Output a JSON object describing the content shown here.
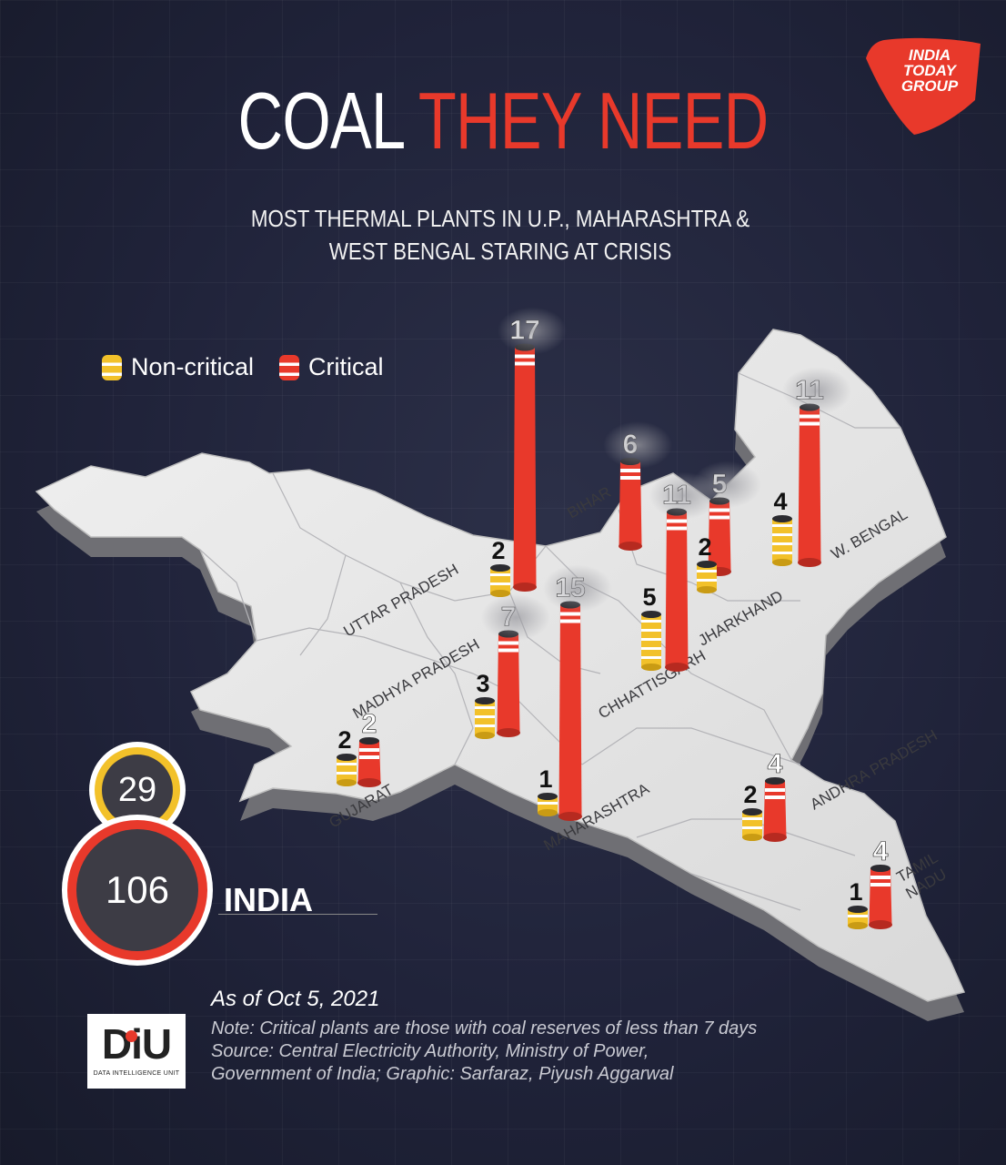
{
  "header": {
    "title_white": "COAL",
    "title_red": "THEY NEED",
    "subtitle_line1": "MOST THERMAL PLANTS IN U.P., MAHARASHTRA &",
    "subtitle_line2": "WEST BENGAL STARING AT CRISIS",
    "brand_lines": [
      "INDIA",
      "TODAY",
      "GROUP"
    ]
  },
  "legend": {
    "noncritical_label": "Non-critical",
    "critical_label": "Critical"
  },
  "colors": {
    "critical": "#e8392b",
    "noncritical": "#f2c12a",
    "map_land": "#e6e6e6",
    "background": "#1f2233"
  },
  "map": {
    "labels": {
      "uttar_pradesh": "UTTAR PRADESH",
      "madhya_pradesh": "MADHYA PRADESH",
      "bihar": "BIHAR",
      "jharkhand": "JHARKHAND",
      "west_bengal": "W. BENGAL",
      "chhattisgarh": "CHHATTISGARH",
      "gujarat": "GUJARAT",
      "maharashtra": "MAHARASHTRA",
      "andhra_pradesh": "ANDHRA PRADESH",
      "tamil_nadu_1": "TAMIL",
      "tamil_nadu_2": "NADU"
    },
    "plants": [
      {
        "state": "Uttar Pradesh",
        "critical": 17,
        "noncritical": 2
      },
      {
        "state": "Bihar",
        "critical": 6
      },
      {
        "state": "Chhattisgarh",
        "critical": 11,
        "noncritical": 5
      },
      {
        "state": "Jharkhand",
        "critical": 5,
        "noncritical": 2
      },
      {
        "state": "West Bengal",
        "critical": 11,
        "noncritical": 4
      },
      {
        "state": "Madhya Pradesh",
        "critical": 7,
        "noncritical": 3
      },
      {
        "state": "Maharashtra",
        "critical": 15,
        "noncritical": 1
      },
      {
        "state": "Gujarat",
        "critical": 2,
        "noncritical": 2
      },
      {
        "state": "Andhra Pradesh",
        "critical": 4,
        "noncritical": 2
      },
      {
        "state": "Tamil Nadu",
        "critical": 4,
        "noncritical": 1
      }
    ]
  },
  "totals": {
    "noncritical": "29",
    "critical": "106",
    "label": "INDIA"
  },
  "footer": {
    "date": "As of Oct 5, 2021",
    "note": "Note: Critical plants are those with coal reserves of less than 7 days",
    "source1": "Source:  Central Electricity Authority, Ministry of Power,",
    "source2": "Government of India; Graphic: Sarfaraz, Piyush Aggarwal",
    "diu_logo": "DiU",
    "diu_sub": "DATA INTELLIGENCE UNIT"
  }
}
